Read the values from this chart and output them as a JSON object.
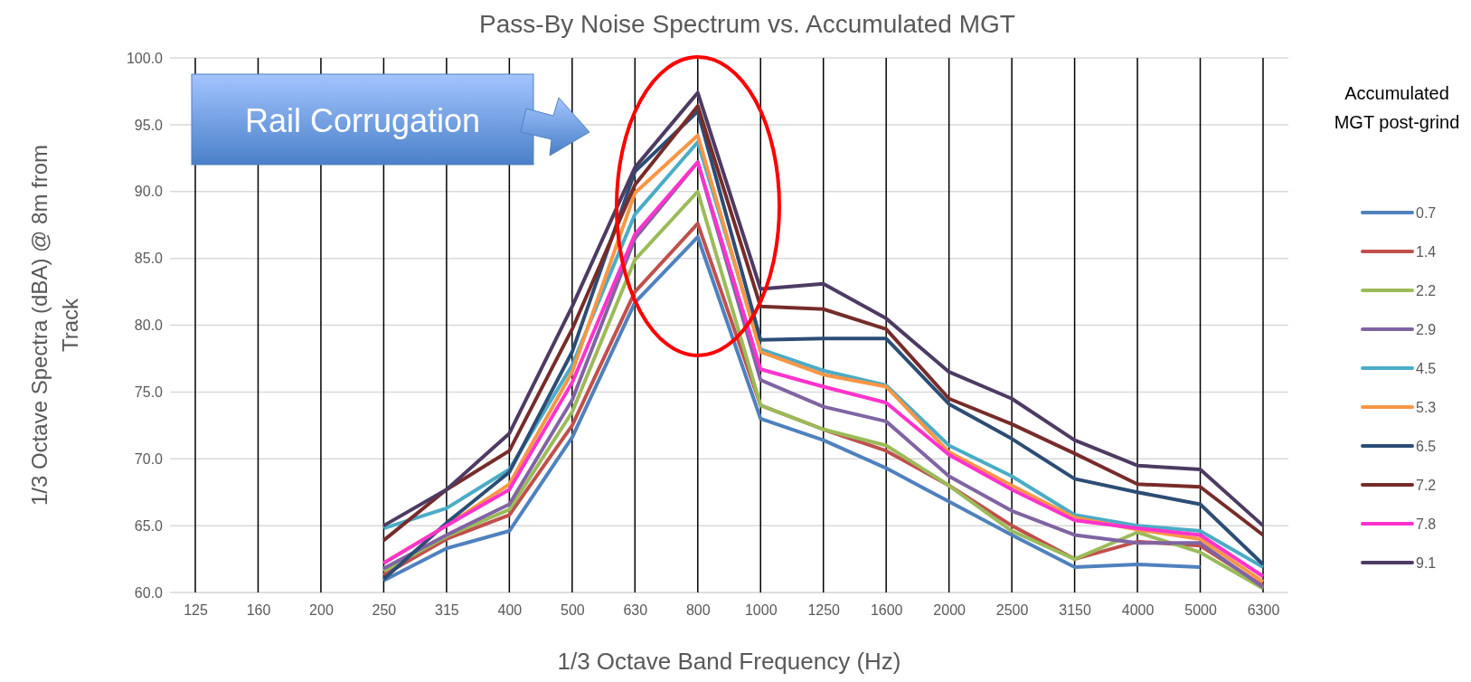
{
  "chart_data": {
    "type": "line",
    "title": "Pass-By Noise Spectrum vs. Accumulated MGT",
    "xlabel": "1/3 Octave Band Frequency (Hz)",
    "ylabel": "1/3 Octave Spectra (dBA) @ 8m from Track",
    "legend_title": "Accumulated MGT post-grind",
    "legend": "right",
    "grid": true,
    "line_style": "solid",
    "marker": "none",
    "categories": [
      "125",
      "160",
      "200",
      "250",
      "315",
      "400",
      "500",
      "630",
      "800",
      "1000",
      "1250",
      "1600",
      "2000",
      "2500",
      "3150",
      "4000",
      "5000",
      "6300"
    ],
    "ylim": [
      60,
      100
    ],
    "yticks": [
      {
        "value": 60,
        "label": "60.0"
      },
      {
        "value": 65,
        "label": "65.0"
      },
      {
        "value": 70,
        "label": "70.0"
      },
      {
        "value": 75,
        "label": "75.0"
      },
      {
        "value": 80,
        "label": "80.0"
      },
      {
        "value": 85,
        "label": "85.0"
      },
      {
        "value": 90,
        "label": "90.0"
      },
      {
        "value": 95,
        "label": "95.0"
      },
      {
        "value": 100,
        "label": "100.0"
      }
    ],
    "annotations": [
      "Rail Corrugation"
    ],
    "series": [
      {
        "name": "0.7",
        "color": "#4f81bd",
        "values": [
          null,
          null,
          null,
          60.9,
          63.3,
          64.6,
          71.6,
          81.7,
          86.6,
          73.0,
          71.4,
          69.3,
          66.8,
          64.3,
          61.9,
          62.1,
          61.9,
          null
        ]
      },
      {
        "name": "1.4",
        "color": "#c0504d",
        "values": [
          null,
          null,
          null,
          61.3,
          64.0,
          65.8,
          72.5,
          82.5,
          87.6,
          74.0,
          72.2,
          70.6,
          68.0,
          65.0,
          62.5,
          63.8,
          63.5,
          60.5
        ]
      },
      {
        "name": "2.2",
        "color": "#9bbb59",
        "values": [
          null,
          null,
          null,
          61.6,
          64.2,
          66.2,
          73.5,
          84.9,
          90.0,
          74.0,
          72.2,
          71.0,
          68.0,
          64.6,
          62.5,
          64.5,
          63.0,
          60.3
        ]
      },
      {
        "name": "2.9",
        "color": "#8064a2",
        "values": [
          null,
          null,
          null,
          61.8,
          64.3,
          66.6,
          74.4,
          86.5,
          92.2,
          75.9,
          73.9,
          72.8,
          68.7,
          66.1,
          64.3,
          63.7,
          63.7,
          60.4
        ]
      },
      {
        "name": "4.5",
        "color": "#4bacc6",
        "values": [
          null,
          null,
          null,
          64.8,
          66.3,
          69.2,
          77.0,
          88.3,
          93.7,
          78.2,
          76.6,
          75.5,
          71.0,
          68.7,
          65.8,
          65.0,
          64.6,
          61.9
        ]
      },
      {
        "name": "5.3",
        "color": "#f79646",
        "values": [
          null,
          null,
          null,
          62.2,
          65.0,
          68.1,
          76.5,
          89.9,
          94.2,
          78.0,
          76.3,
          75.4,
          70.5,
          68.0,
          65.6,
          64.7,
          64.0,
          60.8
        ]
      },
      {
        "name": "6.5",
        "color": "#2c4d75",
        "values": [
          null,
          null,
          null,
          61.0,
          65.2,
          69.0,
          78.0,
          91.5,
          96.0,
          78.9,
          79.0,
          79.0,
          74.1,
          71.5,
          68.5,
          67.5,
          66.6,
          62.1
        ]
      },
      {
        "name": "7.2",
        "color": "#772c2a",
        "values": [
          null,
          null,
          null,
          63.9,
          67.7,
          70.6,
          79.7,
          90.5,
          96.4,
          81.4,
          81.2,
          79.7,
          74.5,
          72.6,
          70.4,
          68.1,
          67.9,
          64.3
        ]
      },
      {
        "name": "7.8",
        "color": "#ff33cc",
        "values": [
          null,
          null,
          null,
          62.2,
          65.0,
          67.7,
          75.7,
          86.8,
          92.2,
          76.7,
          75.4,
          74.2,
          70.3,
          67.7,
          65.4,
          64.8,
          64.3,
          61.2
        ]
      },
      {
        "name": "9.1",
        "color": "#4d3b62",
        "values": [
          null,
          null,
          null,
          65.0,
          67.7,
          71.9,
          81.4,
          91.8,
          97.4,
          82.7,
          83.1,
          80.5,
          76.5,
          74.5,
          71.4,
          69.5,
          69.2,
          65.0
        ]
      }
    ]
  }
}
